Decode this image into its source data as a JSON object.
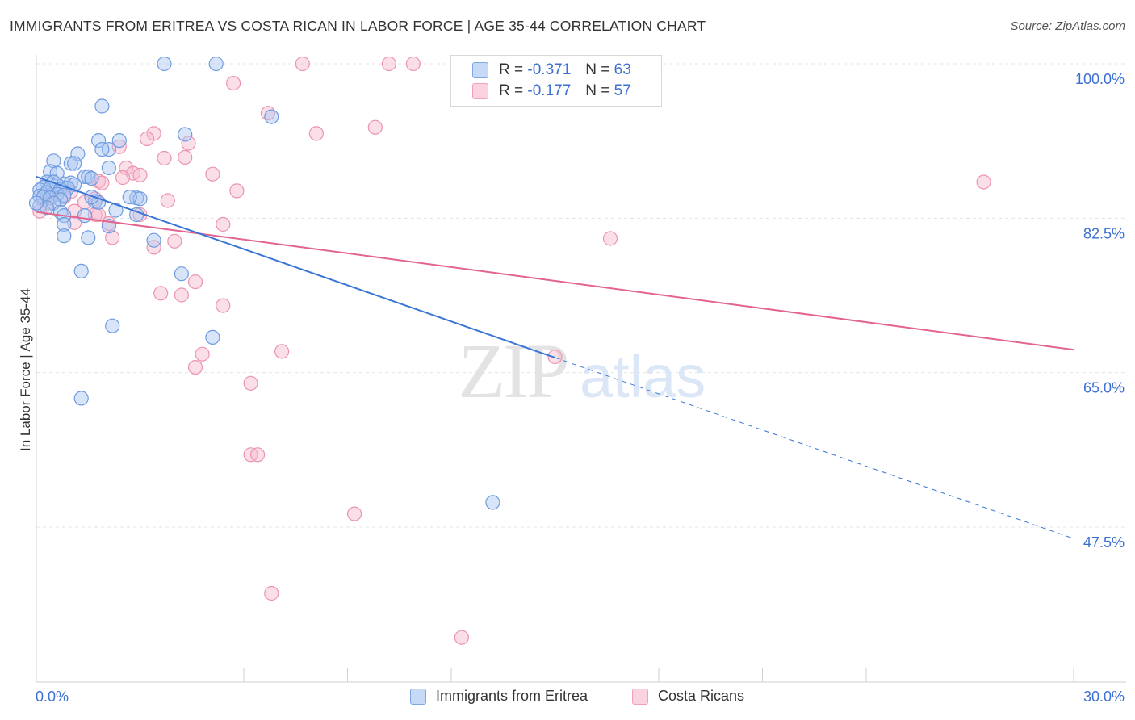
{
  "title": "IMMIGRANTS FROM ERITREA VS COSTA RICAN IN LABOR FORCE | AGE 35-44 CORRELATION CHART",
  "source": "Source: ZipAtlas.com",
  "watermark": {
    "zip": "ZIP",
    "atlas": "atlas"
  },
  "legend": {
    "rows": [
      {
        "r_label": "R =",
        "r_value": "-0.371",
        "n_label": "N =",
        "n_value": "63",
        "color": "#a9c6f2"
      },
      {
        "r_label": "R =",
        "r_value": "-0.177",
        "n_label": "N =",
        "n_value": "57",
        "color": "#f6b8cb"
      }
    ],
    "items": [
      {
        "label": "Immigrants from Eritrea",
        "color": "#a9c6f2"
      },
      {
        "label": "Costa Ricans",
        "color": "#f6b8cb"
      }
    ]
  },
  "chart_data": {
    "type": "scatter",
    "title": "IMMIGRANTS FROM ERITREA VS COSTA RICAN IN LABOR FORCE | AGE 35-44 CORRELATION CHART",
    "xlabel": "",
    "ylabel": "In Labor Force | Age 35-44",
    "xlim": [
      0,
      30
    ],
    "ylim": [
      32,
      101
    ],
    "x_tick_labels": [
      "0.0%",
      "30.0%"
    ],
    "y_ticks": [
      100,
      82.5,
      65,
      47.5
    ],
    "y_tick_labels": [
      "100.0%",
      "82.5%",
      "65.0%",
      "47.5%"
    ],
    "grid": true,
    "legend_position": "top-center",
    "colors": {
      "eritrea": "#3a76d6",
      "costa": "#e2648f",
      "eritrea_fill": "#a9c6f2",
      "costa_fill": "#f6b8cb",
      "tick": "#3b6fd1"
    },
    "series": [
      {
        "name": "Immigrants from Eritrea",
        "r": -0.371,
        "n": 63,
        "trend": {
          "x": [
            0,
            15
          ],
          "y": [
            87.2,
            66.7
          ]
        },
        "trend_dashed": {
          "x": [
            15,
            30
          ],
          "y": [
            66.7,
            46.2
          ]
        },
        "points": [
          [
            3.7,
            100
          ],
          [
            5.2,
            100
          ],
          [
            1.9,
            95.2
          ],
          [
            6.8,
            94
          ],
          [
            4.3,
            92
          ],
          [
            1.8,
            91.3
          ],
          [
            2.4,
            91.3
          ],
          [
            2.1,
            90.3
          ],
          [
            1.9,
            90.3
          ],
          [
            1.2,
            89.8
          ],
          [
            0.5,
            89
          ],
          [
            1.0,
            88.7
          ],
          [
            1.1,
            88.7
          ],
          [
            2.1,
            88.2
          ],
          [
            0.4,
            87.8
          ],
          [
            0.6,
            87.6
          ],
          [
            1.4,
            87.2
          ],
          [
            1.5,
            87.2
          ],
          [
            1.6,
            87.0
          ],
          [
            0.3,
            86.6
          ],
          [
            0.5,
            86.6
          ],
          [
            0.8,
            86.4
          ],
          [
            1.0,
            86.5
          ],
          [
            0.6,
            86.3
          ],
          [
            1.1,
            86.3
          ],
          [
            0.2,
            86.0
          ],
          [
            0.4,
            85.9
          ],
          [
            0.7,
            85.8
          ],
          [
            0.9,
            85.9
          ],
          [
            0.1,
            85.7
          ],
          [
            0.3,
            85.4
          ],
          [
            0.6,
            85.2
          ],
          [
            0.8,
            85.1
          ],
          [
            0.1,
            85.0
          ],
          [
            0.2,
            84.9
          ],
          [
            0.4,
            84.8
          ],
          [
            0.7,
            84.6
          ],
          [
            2.9,
            84.8
          ],
          [
            3.0,
            84.7
          ],
          [
            1.7,
            84.4
          ],
          [
            1.8,
            84.3
          ],
          [
            0.5,
            84.2
          ],
          [
            0.1,
            83.9
          ],
          [
            0.3,
            83.7
          ],
          [
            2.3,
            83.4
          ],
          [
            0.7,
            83.2
          ],
          [
            2.9,
            82.9
          ],
          [
            1.4,
            82.8
          ],
          [
            0.8,
            82.8
          ],
          [
            0.8,
            81.8
          ],
          [
            2.1,
            81.6
          ],
          [
            0.8,
            80.5
          ],
          [
            1.5,
            80.3
          ],
          [
            3.4,
            80.0
          ],
          [
            1.3,
            76.5
          ],
          [
            4.2,
            76.2
          ],
          [
            2.2,
            70.3
          ],
          [
            5.1,
            69
          ],
          [
            1.3,
            62.1
          ],
          [
            13.2,
            50.3
          ],
          [
            0.0,
            84.2
          ],
          [
            2.7,
            84.9
          ],
          [
            1.6,
            84.9
          ]
        ]
      },
      {
        "name": "Costa Ricans",
        "r": -0.177,
        "n": 57,
        "trend": {
          "x": [
            0,
            30
          ],
          "y": [
            83.2,
            67.6
          ]
        },
        "points": [
          [
            7.7,
            100
          ],
          [
            10.2,
            100
          ],
          [
            10.9,
            100
          ],
          [
            5.7,
            97.8
          ],
          [
            6.7,
            94.4
          ],
          [
            9.8,
            92.8
          ],
          [
            8.1,
            92.1
          ],
          [
            3.4,
            92.1
          ],
          [
            3.2,
            91.5
          ],
          [
            4.4,
            91.0
          ],
          [
            2.4,
            90.6
          ],
          [
            4.3,
            89.4
          ],
          [
            3.7,
            89.3
          ],
          [
            2.6,
            88.2
          ],
          [
            2.8,
            87.6
          ],
          [
            3.0,
            87.4
          ],
          [
            5.1,
            87.5
          ],
          [
            1.8,
            86.7
          ],
          [
            1.9,
            86.5
          ],
          [
            5.8,
            85.6
          ],
          [
            3.8,
            84.5
          ],
          [
            1.7,
            84.7
          ],
          [
            1.4,
            84.3
          ],
          [
            0.8,
            84.9
          ],
          [
            0.2,
            84.6
          ],
          [
            0.4,
            84.2
          ],
          [
            0.1,
            83.3
          ],
          [
            1.1,
            83.3
          ],
          [
            1.7,
            82.9
          ],
          [
            1.8,
            82.9
          ],
          [
            3.0,
            82.9
          ],
          [
            1.1,
            82.0
          ],
          [
            2.1,
            81.9
          ],
          [
            5.4,
            81.8
          ],
          [
            2.2,
            80.3
          ],
          [
            3.4,
            79.2
          ],
          [
            4.0,
            79.9
          ],
          [
            16.6,
            80.2
          ],
          [
            27.4,
            86.6
          ],
          [
            15.0,
            66.8
          ],
          [
            4.6,
            75.3
          ],
          [
            3.6,
            74.0
          ],
          [
            4.2,
            73.8
          ],
          [
            5.4,
            72.6
          ],
          [
            7.1,
            67.4
          ],
          [
            4.8,
            67.1
          ],
          [
            4.6,
            65.6
          ],
          [
            6.2,
            63.8
          ],
          [
            6.2,
            55.7
          ],
          [
            6.4,
            55.7
          ],
          [
            9.2,
            49.0
          ],
          [
            6.8,
            40.0
          ],
          [
            12.3,
            35.0
          ],
          [
            0.6,
            85.3
          ],
          [
            2.5,
            87.1
          ],
          [
            1.0,
            85.5
          ],
          [
            0.3,
            85.0
          ]
        ]
      }
    ]
  }
}
